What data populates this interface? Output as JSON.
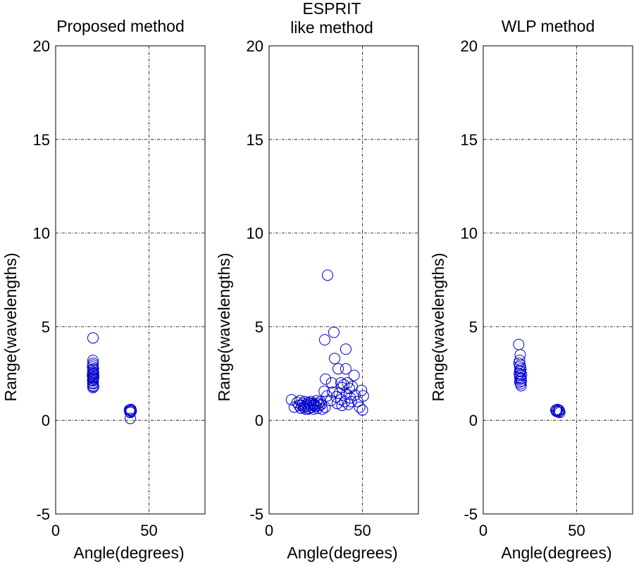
{
  "chart_data": [
    {
      "type": "scatter",
      "title": [
        "Proposed method"
      ],
      "xlabel": "Angle(degrees)",
      "ylabel": "Range(wavelengths)",
      "xlim": [
        0,
        80
      ],
      "ylim": [
        -5,
        20
      ],
      "xticks": [
        0,
        50
      ],
      "yticks": [
        -5,
        0,
        5,
        10,
        15,
        20
      ],
      "grid": "dash-dot at x=50 and y=0,5,10,15",
      "marker": "open-circle",
      "color": "#0000cc",
      "points": [
        [
          20,
          4.4
        ],
        [
          20,
          3.2
        ],
        [
          20,
          3.05
        ],
        [
          20,
          2.95
        ],
        [
          19.8,
          2.85
        ],
        [
          20.2,
          2.75
        ],
        [
          20,
          2.7
        ],
        [
          19.9,
          2.6
        ],
        [
          20.3,
          2.55
        ],
        [
          20,
          2.5
        ],
        [
          20.1,
          2.45
        ],
        [
          19.7,
          2.4
        ],
        [
          20.4,
          2.35
        ],
        [
          20,
          2.3
        ],
        [
          20,
          2.25
        ],
        [
          20.2,
          2.2
        ],
        [
          19.8,
          2.15
        ],
        [
          20,
          2.1
        ],
        [
          20.1,
          2.0
        ],
        [
          19.9,
          1.95
        ],
        [
          20,
          1.85
        ],
        [
          20.3,
          1.8
        ],
        [
          20,
          1.75
        ],
        [
          40,
          0.55
        ],
        [
          40.2,
          0.5
        ],
        [
          39.8,
          0.45
        ],
        [
          40.5,
          0.5
        ],
        [
          39.5,
          0.55
        ],
        [
          40,
          0.42
        ],
        [
          40.3,
          0.58
        ],
        [
          40,
          0.1
        ]
      ]
    },
    {
      "type": "scatter",
      "title": [
        "ESPRIT",
        "like method"
      ],
      "xlabel": "Angle(degrees)",
      "ylabel": "Range(wavelengths)",
      "xlim": [
        0,
        80
      ],
      "ylim": [
        -5,
        20
      ],
      "xticks": [
        0,
        50
      ],
      "yticks": [
        -5,
        0,
        5,
        10,
        15,
        20
      ],
      "grid": "dash-dot at x=50 and y=0,5,10,15",
      "marker": "open-circle",
      "color": "#0000cc",
      "points": [
        [
          31.3,
          7.75
        ],
        [
          34.7,
          4.7
        ],
        [
          29.8,
          4.3
        ],
        [
          41.1,
          3.8
        ],
        [
          35.1,
          3.3
        ],
        [
          37.0,
          2.75
        ],
        [
          41.1,
          2.75
        ],
        [
          45.5,
          2.4
        ],
        [
          30.2,
          2.2
        ],
        [
          33.5,
          2.0
        ],
        [
          38.5,
          2.0
        ],
        [
          42.0,
          2.0
        ],
        [
          40.0,
          1.9
        ],
        [
          44.5,
          1.8
        ],
        [
          39.0,
          1.75
        ],
        [
          43.0,
          1.7
        ],
        [
          49.5,
          1.6
        ],
        [
          29.5,
          1.55
        ],
        [
          34.0,
          1.5
        ],
        [
          37.5,
          1.45
        ],
        [
          41.5,
          1.4
        ],
        [
          46.0,
          1.35
        ],
        [
          50.5,
          1.3
        ],
        [
          31.0,
          1.3
        ],
        [
          36.0,
          1.25
        ],
        [
          43.5,
          1.2
        ],
        [
          38.5,
          1.1
        ],
        [
          33.0,
          1.05
        ],
        [
          40.5,
          1.0
        ],
        [
          44.0,
          1.0
        ],
        [
          47.5,
          1.0
        ],
        [
          36.5,
          0.9
        ],
        [
          42.5,
          0.85
        ],
        [
          39.0,
          0.8
        ],
        [
          48.5,
          0.7
        ],
        [
          50.0,
          0.55
        ],
        [
          30.0,
          0.7
        ],
        [
          28.5,
          0.6
        ],
        [
          12.0,
          1.1
        ],
        [
          13.5,
          0.7
        ],
        [
          15.0,
          0.95
        ],
        [
          16.5,
          1.05
        ],
        [
          17.5,
          0.8
        ],
        [
          18.5,
          0.7
        ],
        [
          19.0,
          1.0
        ],
        [
          19.5,
          0.6
        ],
        [
          20.0,
          0.85
        ],
        [
          20.5,
          0.75
        ],
        [
          21.0,
          0.95
        ],
        [
          21.5,
          0.65
        ],
        [
          22.0,
          0.8
        ],
        [
          22.5,
          1.0
        ],
        [
          23.0,
          0.7
        ],
        [
          23.5,
          0.9
        ],
        [
          24.0,
          0.6
        ],
        [
          24.5,
          0.85
        ],
        [
          25.0,
          0.75
        ],
        [
          25.5,
          1.05
        ],
        [
          26.0,
          0.65
        ],
        [
          26.5,
          0.9
        ],
        [
          27.0,
          0.8
        ],
        [
          18.0,
          0.9
        ],
        [
          19.2,
          0.75
        ],
        [
          20.8,
          0.6
        ],
        [
          22.2,
          0.9
        ],
        [
          23.8,
          0.8
        ],
        [
          17.0,
          0.65
        ],
        [
          16.0,
          0.8
        ],
        [
          27.5,
          1.0
        ],
        [
          28.0,
          0.85
        ]
      ]
    },
    {
      "type": "scatter",
      "title": [
        "WLP method"
      ],
      "xlabel": "Angle(degrees)",
      "ylabel": "Range(wavelengths)",
      "xlim": [
        0,
        80
      ],
      "ylim": [
        -5,
        20
      ],
      "xticks": [
        0,
        50
      ],
      "yticks": [
        -5,
        0,
        5,
        10,
        15,
        20
      ],
      "grid": "dash-dot at x=50 and y=0,5,10,15",
      "marker": "open-circle",
      "color": "#0000cc",
      "points": [
        [
          19.0,
          4.05
        ],
        [
          19.8,
          3.5
        ],
        [
          19.5,
          3.2
        ],
        [
          19.2,
          3.05
        ],
        [
          19.8,
          2.95
        ],
        [
          19.5,
          2.85
        ],
        [
          20.2,
          2.75
        ],
        [
          19.6,
          2.65
        ],
        [
          20.0,
          2.6
        ],
        [
          19.3,
          2.5
        ],
        [
          20.5,
          2.45
        ],
        [
          19.8,
          2.4
        ],
        [
          19.5,
          2.3
        ],
        [
          20.2,
          2.25
        ],
        [
          19.9,
          2.2
        ],
        [
          20.4,
          2.1
        ],
        [
          19.6,
          2.05
        ],
        [
          20.0,
          1.95
        ],
        [
          20.3,
          1.85
        ],
        [
          38.9,
          0.55
        ],
        [
          39.5,
          0.5
        ],
        [
          40.2,
          0.45
        ],
        [
          40.8,
          0.5
        ],
        [
          41.0,
          0.42
        ],
        [
          39.8,
          0.58
        ],
        [
          40.5,
          0.55
        ],
        [
          39.2,
          0.48
        ]
      ]
    }
  ]
}
